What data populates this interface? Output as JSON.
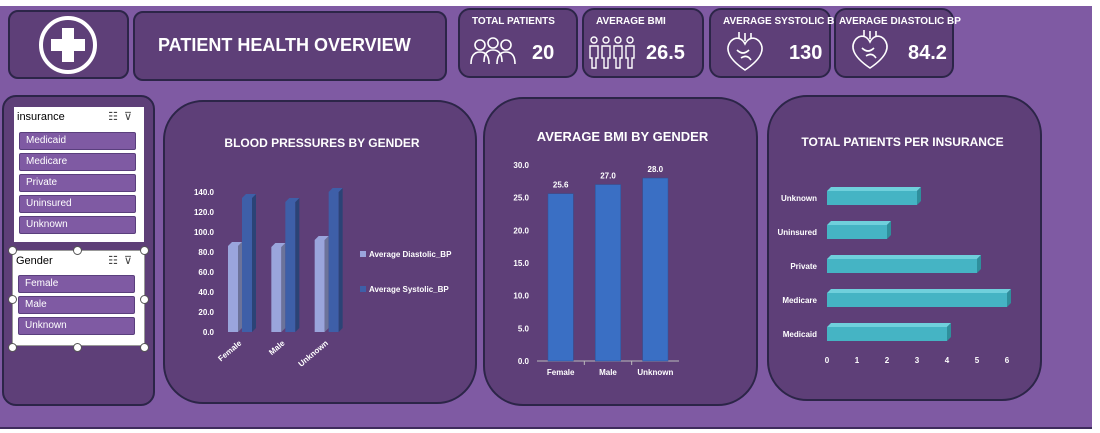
{
  "header": {
    "title": "PATIENT HEALTH OVERVIEW",
    "logo_icon": "medical-cross-icon"
  },
  "kpis": [
    {
      "label": "TOTAL PATIENTS",
      "value": "20",
      "icon": "people-group-icon"
    },
    {
      "label": "AVERAGE BMI",
      "value": "26.5",
      "icon": "body-figures-icon"
    },
    {
      "label": "AVERAGE SYSTOLIC BP",
      "value": "130",
      "icon": "heart-icon"
    },
    {
      "label": "AVERAGE DIASTOLIC BP",
      "value": "84.2",
      "icon": "heart-icon"
    }
  ],
  "slicers": {
    "insurance": {
      "header": "insurance",
      "items": [
        "Medicaid",
        "Medicare",
        "Private",
        "Uninsured",
        "Unknown"
      ]
    },
    "gender": {
      "header": "Gender",
      "items": [
        "Female",
        "Male",
        "Unknown"
      ]
    }
  },
  "colors": {
    "background": "#7f5aa3",
    "card": "#5e3f78",
    "diastolic": "#9aa5dc",
    "systolic": "#3e5fa8",
    "bmi_bar": "#3a6fc4",
    "insurance_bar": "#45b4c4"
  },
  "chart_data": [
    {
      "type": "bar",
      "title": "BLOOD PRESSURES BY GENDER",
      "categories": [
        "Female",
        "Male",
        "Unknown"
      ],
      "series": [
        {
          "name": "Average Diastolic_BP",
          "values": [
            86,
            85,
            92
          ]
        },
        {
          "name": "Average Systolic_BP",
          "values": [
            134,
            130,
            140
          ]
        }
      ],
      "yticks": [
        "0.0",
        "20.0",
        "40.0",
        "60.0",
        "80.0",
        "100.0",
        "120.0",
        "140.0"
      ],
      "ylim": [
        0,
        140
      ],
      "legend": "right",
      "grid": false
    },
    {
      "type": "bar",
      "title": "AVERAGE BMI BY GENDER",
      "categories": [
        "Female",
        "Male",
        "Unknown"
      ],
      "values": [
        25.6,
        27.0,
        28.0
      ],
      "data_labels": [
        "25.6",
        "27.0",
        "28.0"
      ],
      "yticks": [
        "0.0",
        "5.0",
        "10.0",
        "15.0",
        "20.0",
        "25.0",
        "30.0"
      ],
      "ylim": [
        0,
        30
      ],
      "grid": false
    },
    {
      "type": "bar",
      "orientation": "horizontal",
      "title": "TOTAL PATIENTS PER INSURANCE",
      "categories": [
        "Unknown",
        "Uninsured",
        "Private",
        "Medicare",
        "Medicaid"
      ],
      "values": [
        3,
        2,
        5,
        6,
        4
      ],
      "xticks": [
        "0",
        "1",
        "2",
        "3",
        "4",
        "5",
        "6"
      ],
      "xlim": [
        0,
        6
      ],
      "grid": false
    }
  ]
}
